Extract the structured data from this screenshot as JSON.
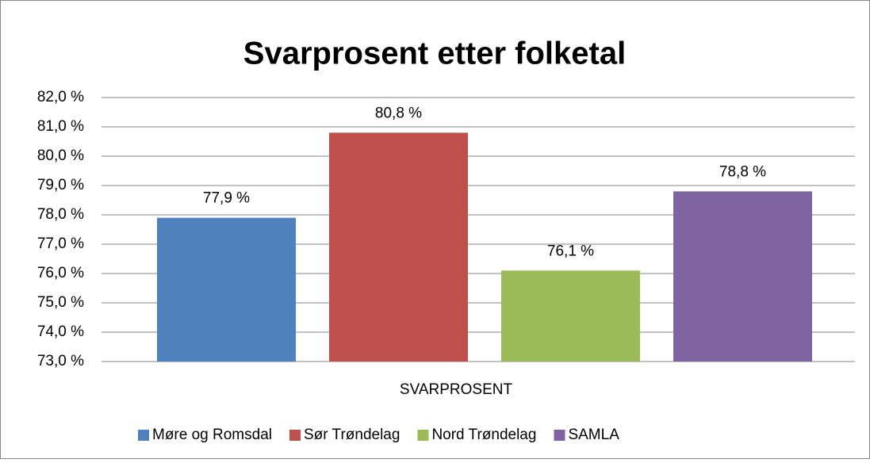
{
  "chart_data": {
    "type": "bar",
    "title": "Svarprosent etter folketal",
    "categories": [
      "SVARPROSENT"
    ],
    "series": [
      {
        "name": "Møre og Romsdal",
        "color": "#4f81bd",
        "values": [
          77.9
        ],
        "value_labels": [
          "77,9 %"
        ]
      },
      {
        "name": "Sør Trøndelag",
        "color": "#c0504d",
        "values": [
          80.8
        ],
        "value_labels": [
          "80,8 %"
        ]
      },
      {
        "name": "Nord Trøndelag",
        "color": "#9bbb59",
        "values": [
          76.1
        ],
        "value_labels": [
          "76,1 %"
        ]
      },
      {
        "name": "SAMLA",
        "color": "#8064a2",
        "values": [
          78.8
        ],
        "value_labels": [
          "78,8 %"
        ]
      }
    ],
    "ylim": [
      73,
      82
    ],
    "yticks": [
      {
        "value": 73,
        "label": "73,0 %"
      },
      {
        "value": 74,
        "label": "74,0 %"
      },
      {
        "value": 75,
        "label": "75,0 %"
      },
      {
        "value": 76,
        "label": "76,0 %"
      },
      {
        "value": 77,
        "label": "77,0 %"
      },
      {
        "value": 78,
        "label": "78,0 %"
      },
      {
        "value": 79,
        "label": "79,0 %"
      },
      {
        "value": 80,
        "label": "80,0 %"
      },
      {
        "value": 81,
        "label": "81,0 %"
      },
      {
        "value": 82,
        "label": "82,0 %"
      }
    ],
    "grid": true
  }
}
